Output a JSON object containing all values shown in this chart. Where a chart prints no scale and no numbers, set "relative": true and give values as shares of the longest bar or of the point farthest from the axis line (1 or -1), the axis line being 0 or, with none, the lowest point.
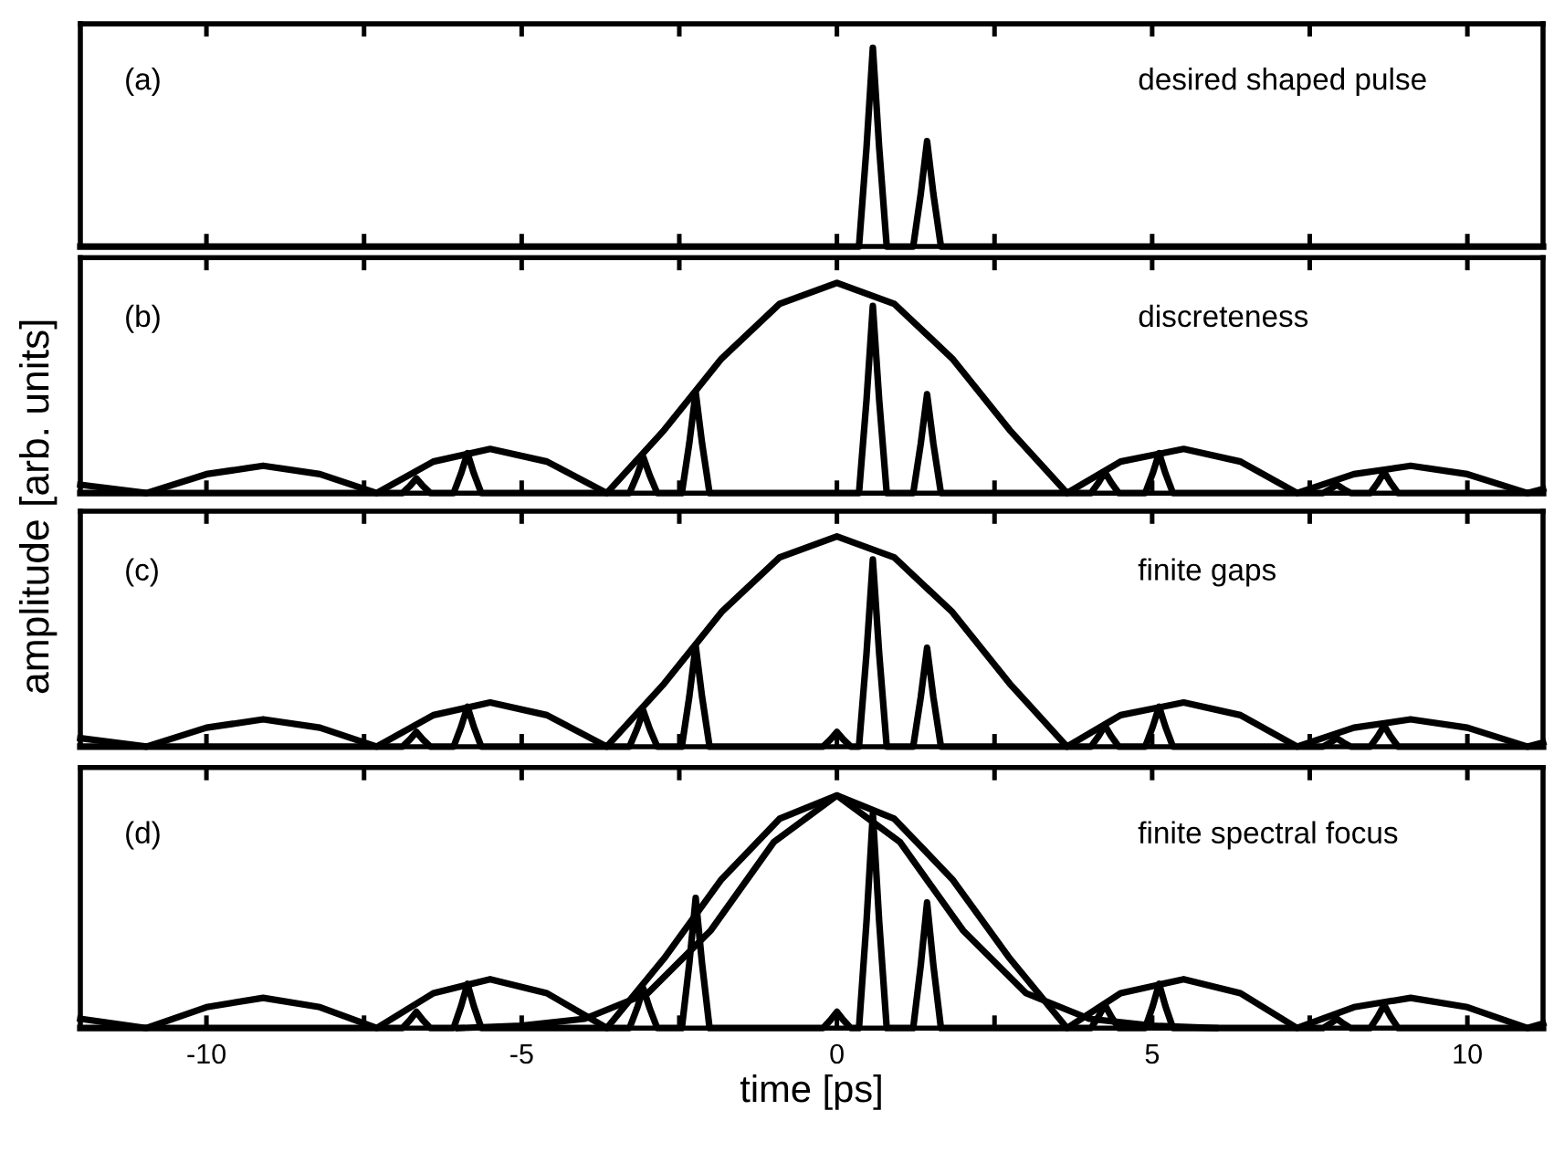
{
  "chart_data": [
    {
      "type": "line",
      "relative": true,
      "tick_labels": false,
      "xlim": [
        -12,
        11.2
      ],
      "xticks": [
        -10,
        {
          "value": -7.5,
          "label": null
        },
        -5,
        {
          "value": -2.5,
          "label": null
        },
        0,
        {
          "value": 2.5,
          "label": null
        },
        5,
        {
          "value": 7.5,
          "label": null
        },
        10
      ],
      "annotations": [
        "(a)",
        "desired shaped pulse"
      ],
      "series": [
        {
          "color": "#000000",
          "x": [
            -12,
            0.35,
            0.47,
            0.57,
            0.67,
            0.79,
            1.21,
            1.33,
            1.43,
            1.53,
            1.65,
            11.2
          ],
          "values": [
            0,
            0,
            0.5,
            1,
            0.5,
            0,
            0,
            0.265,
            0.53,
            0.265,
            0,
            0
          ]
        }
      ]
    },
    {
      "type": "line",
      "relative": true,
      "tick_labels": false,
      "xlim": [
        -12,
        11.2
      ],
      "xticks": [
        -10,
        {
          "value": -7.5,
          "label": null
        },
        -5,
        {
          "value": -2.5,
          "label": null
        },
        0,
        {
          "value": 2.5,
          "label": null
        },
        5,
        {
          "value": 7.5,
          "label": null
        },
        10
      ],
      "annotations": [
        "(b)",
        "discreteness"
      ],
      "series": [
        {
          "color": "#000000",
          "x": [
            -12,
            -10.95,
            -10.0,
            -9.1,
            -8.2,
            -7.3,
            -6.4,
            -5.5,
            -4.6,
            -3.65,
            -2.74,
            -1.83,
            -0.91,
            0,
            0.91,
            1.83,
            2.74,
            3.65,
            4.5,
            5.5,
            6.4,
            7.3,
            8.2,
            9.1,
            10.0,
            10.95,
            11.2
          ],
          "values": [
            0.04,
            0,
            0.09,
            0.13,
            0.09,
            0,
            0.15,
            0.21,
            0.15,
            0,
            0.3,
            0.64,
            0.9,
            1,
            0.9,
            0.64,
            0.3,
            0,
            0.15,
            0.21,
            0.15,
            0,
            0.09,
            0.13,
            0.09,
            0,
            0.02
          ]
        },
        {
          "color": "#000000",
          "x": [
            -12,
            -6.89,
            -6.77,
            -6.67,
            -6.57,
            -6.45,
            -6.08,
            -5.96,
            -5.86,
            -5.76,
            -5.64,
            -3.29,
            -3.17,
            -3.07,
            -2.97,
            -2.85,
            -2.46,
            -2.34,
            -2.24,
            -2.14,
            -2.02,
            0.35,
            0.47,
            0.57,
            0.67,
            0.79,
            1.21,
            1.33,
            1.43,
            1.53,
            1.65,
            4.03,
            4.15,
            4.25,
            4.35,
            4.47,
            4.89,
            5.01,
            5.11,
            5.21,
            5.33,
            7.71,
            7.83,
            7.93,
            8.03,
            8.15,
            8.46,
            8.58,
            8.68,
            8.78,
            8.9,
            11.2
          ],
          "values": [
            0,
            0,
            0.035,
            0.07,
            0.035,
            0,
            0,
            0.095,
            0.19,
            0.095,
            0,
            0,
            0.085,
            0.17,
            0.085,
            0,
            0,
            0.24,
            0.48,
            0.24,
            0,
            0,
            0.445,
            0.89,
            0.445,
            0,
            0,
            0.235,
            0.47,
            0.235,
            0,
            0,
            0.05,
            0.1,
            0.05,
            0,
            0,
            0.095,
            0.19,
            0.095,
            0,
            0,
            0.02,
            0.04,
            0.02,
            0,
            0,
            0.05,
            0.1,
            0.05,
            0,
            0
          ]
        }
      ]
    },
    {
      "type": "line",
      "relative": true,
      "tick_labels": false,
      "xlim": [
        -12,
        11.2
      ],
      "xticks": [
        -10,
        {
          "value": -7.5,
          "label": null
        },
        -5,
        {
          "value": -2.5,
          "label": null
        },
        0,
        {
          "value": 2.5,
          "label": null
        },
        5,
        {
          "value": 7.5,
          "label": null
        },
        10
      ],
      "ylabel": "amplitude [arb. units]",
      "annotations": [
        "(c)",
        "finite gaps"
      ],
      "series": [
        {
          "color": "#000000",
          "x": [
            -12,
            -10.95,
            -10.0,
            -9.1,
            -8.2,
            -7.3,
            -6.4,
            -5.5,
            -4.6,
            -3.65,
            -2.74,
            -1.83,
            -0.91,
            0,
            0.91,
            1.83,
            2.74,
            3.65,
            4.5,
            5.5,
            6.4,
            7.3,
            8.2,
            9.1,
            10.0,
            10.95,
            11.2
          ],
          "values": [
            0.04,
            0,
            0.09,
            0.13,
            0.09,
            0,
            0.15,
            0.21,
            0.15,
            0,
            0.3,
            0.64,
            0.9,
            1,
            0.9,
            0.64,
            0.3,
            0,
            0.15,
            0.21,
            0.15,
            0,
            0.09,
            0.13,
            0.09,
            0,
            0.02
          ]
        },
        {
          "color": "#000000",
          "x": [
            -12,
            -6.89,
            -6.77,
            -6.67,
            -6.57,
            -6.45,
            -6.08,
            -5.96,
            -5.86,
            -5.76,
            -5.64,
            -3.29,
            -3.17,
            -3.07,
            -2.97,
            -2.85,
            -2.46,
            -2.34,
            -2.24,
            -2.14,
            -2.02,
            -0.22,
            -0.1,
            0,
            0.1,
            0.22,
            0.35,
            0.47,
            0.57,
            0.67,
            0.79,
            1.21,
            1.33,
            1.43,
            1.53,
            1.65,
            4.03,
            4.15,
            4.25,
            4.35,
            4.47,
            4.89,
            5.01,
            5.11,
            5.21,
            5.33,
            7.71,
            7.83,
            7.93,
            8.03,
            8.15,
            8.46,
            8.58,
            8.68,
            8.78,
            8.9,
            11.2
          ],
          "values": [
            0,
            0,
            0.035,
            0.07,
            0.035,
            0,
            0,
            0.095,
            0.19,
            0.095,
            0,
            0,
            0.085,
            0.17,
            0.085,
            0,
            0,
            0.24,
            0.48,
            0.24,
            0,
            0,
            0.035,
            0.07,
            0.035,
            0,
            0,
            0.445,
            0.89,
            0.445,
            0,
            0,
            0.235,
            0.47,
            0.235,
            0,
            0,
            0.05,
            0.1,
            0.05,
            0,
            0,
            0.095,
            0.19,
            0.095,
            0,
            0,
            0.02,
            0.04,
            0.02,
            0,
            0,
            0.05,
            0.1,
            0.05,
            0,
            0
          ]
        }
      ]
    },
    {
      "type": "line",
      "relative": true,
      "tick_labels": "x",
      "xlim": [
        -12,
        11.2
      ],
      "xticks": [
        -10,
        {
          "value": -7.5,
          "label": null
        },
        -5,
        {
          "value": -2.5,
          "label": null
        },
        0,
        {
          "value": 2.5,
          "label": null
        },
        5,
        {
          "value": 7.5,
          "label": null
        },
        10
      ],
      "xlabel": "time [ps]",
      "annotations": [
        "(d)",
        "finite spectral focus"
      ],
      "series": [
        {
          "color": "#000000",
          "x": [
            -12,
            -10.95,
            -10.0,
            -9.1,
            -8.2,
            -7.3,
            -6.4,
            -5.5,
            -4.6,
            -3.65,
            -2.74,
            -1.83,
            -0.91,
            0,
            0.91,
            1.83,
            2.74,
            3.65,
            4.5,
            5.5,
            6.4,
            7.3,
            8.2,
            9.1,
            10.0,
            10.95,
            11.2
          ],
          "values": [
            0.04,
            0,
            0.09,
            0.13,
            0.09,
            0,
            0.15,
            0.21,
            0.15,
            0,
            0.3,
            0.64,
            0.9,
            1,
            0.9,
            0.64,
            0.3,
            0,
            0.15,
            0.21,
            0.15,
            0,
            0.09,
            0.13,
            0.09,
            0,
            0.02
          ]
        },
        {
          "color": "#000000",
          "x": [
            -6,
            -5,
            -4,
            -3,
            -2,
            -1,
            0,
            1,
            2,
            3,
            4,
            5,
            6
          ],
          "values": [
            0,
            0.01,
            0.04,
            0.15,
            0.42,
            0.8,
            1,
            0.8,
            0.42,
            0.15,
            0.04,
            0.01,
            0
          ]
        },
        {
          "color": "#000000",
          "x": [
            -12,
            -6.89,
            -6.77,
            -6.67,
            -6.57,
            -6.45,
            -6.08,
            -5.96,
            -5.86,
            -5.76,
            -5.64,
            -3.29,
            -3.17,
            -3.07,
            -2.97,
            -2.85,
            -2.46,
            -2.34,
            -2.24,
            -2.14,
            -2.02,
            -0.22,
            -0.1,
            0,
            0.1,
            0.22,
            0.35,
            0.47,
            0.57,
            0.67,
            0.79,
            1.21,
            1.33,
            1.43,
            1.53,
            1.65,
            4.03,
            4.15,
            4.25,
            4.35,
            4.47,
            4.89,
            5.01,
            5.11,
            5.21,
            5.33,
            7.71,
            7.83,
            7.93,
            8.03,
            8.15,
            8.46,
            8.58,
            8.68,
            8.78,
            8.9,
            11.2
          ],
          "values": [
            0,
            0,
            0.035,
            0.07,
            0.035,
            0,
            0,
            0.095,
            0.19,
            0.095,
            0,
            0,
            0.085,
            0.17,
            0.085,
            0,
            0,
            0.28,
            0.56,
            0.28,
            0,
            0,
            0.035,
            0.07,
            0.035,
            0,
            0,
            0.46,
            0.92,
            0.46,
            0,
            0,
            0.27,
            0.54,
            0.27,
            0,
            0,
            0.05,
            0.1,
            0.05,
            0,
            0,
            0.095,
            0.19,
            0.095,
            0,
            0,
            0.02,
            0.04,
            0.02,
            0,
            0,
            0.05,
            0.1,
            0.05,
            0,
            0
          ]
        }
      ]
    }
  ]
}
